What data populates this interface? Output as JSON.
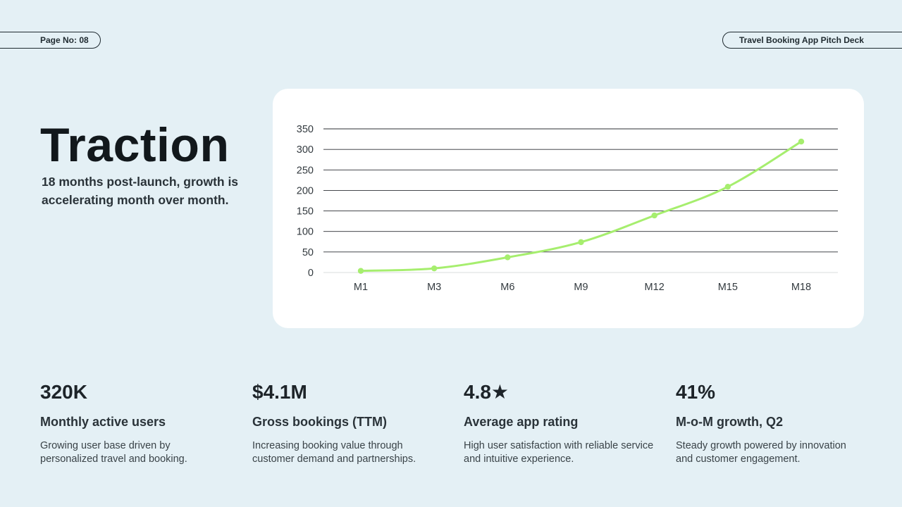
{
  "header": {
    "page_label": "Page No: 08",
    "deck_title": "Travel Booking App Pitch Deck"
  },
  "hero": {
    "title": "Traction",
    "subtitle": "18 months post-launch, growth is accelerating month over month."
  },
  "chart_data": {
    "type": "line",
    "title": "",
    "xlabel": "",
    "ylabel": "",
    "categories": [
      "M1",
      "M3",
      "M6",
      "M9",
      "M12",
      "M15",
      "M18"
    ],
    "series": [
      {
        "values": [
          4,
          10,
          37,
          74,
          139,
          209,
          319
        ]
      }
    ],
    "ylim": [
      0,
      350
    ],
    "yticks": [
      0,
      50,
      100,
      150,
      200,
      250,
      300,
      350
    ],
    "grid": true,
    "colors": {
      "line": "#a6ee6e",
      "grid": "#2b2f33",
      "baseline": "#d9dcde",
      "tick_text": "#333a3f"
    }
  },
  "stats": [
    {
      "value": "320K",
      "label": "Monthly active users",
      "desc": "Growing user base driven by personalized travel and booking."
    },
    {
      "value": "$4.1M",
      "label": "Gross bookings (TTM)",
      "desc": "Increasing booking value through customer demand and partnerships."
    },
    {
      "value": "4.8★",
      "label": "Average app rating",
      "desc": "High user satisfaction with reliable service and intuitive experience."
    },
    {
      "value": "41%",
      "label": "M-o-M growth, Q2",
      "desc": "Steady growth powered by innovation and customer engagement."
    }
  ]
}
